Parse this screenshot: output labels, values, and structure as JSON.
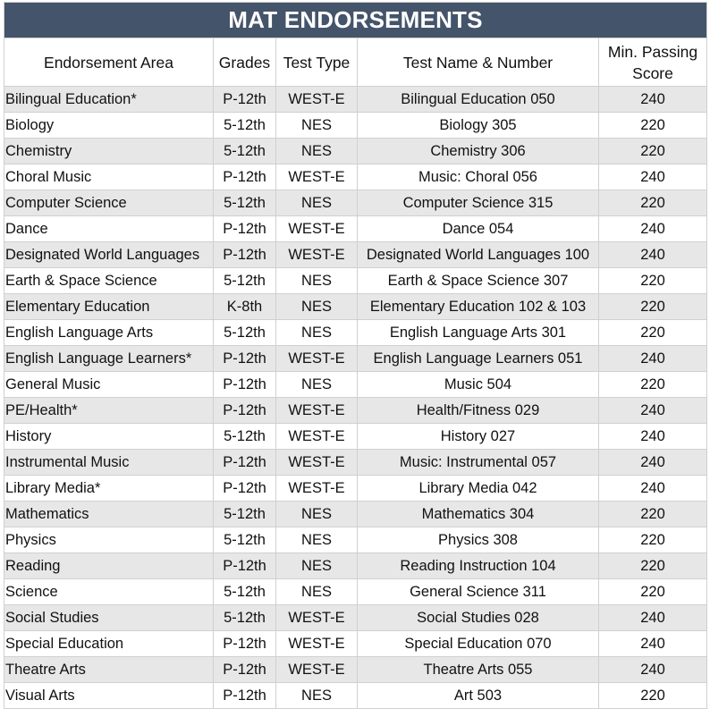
{
  "title": "MAT ENDORSEMENTS",
  "headers": {
    "area": "Endorsement Area",
    "grades": "Grades",
    "test_type": "Test Type",
    "test_name": "Test Name & Number",
    "min_score_line1": "Min. Passing",
    "min_score_line2": "Score"
  },
  "colors": {
    "title_bg": "#44546a",
    "title_text": "#ffffff",
    "row_shade": "#e7e7e7"
  },
  "rows": [
    {
      "area": "Bilingual Education*",
      "grades": "P-12th",
      "type": "WEST-E",
      "test": "Bilingual Education 050",
      "score": "240"
    },
    {
      "area": "Biology",
      "grades": "5-12th",
      "type": "NES",
      "test": "Biology 305",
      "score": "220"
    },
    {
      "area": "Chemistry",
      "grades": "5-12th",
      "type": "NES",
      "test": "Chemistry 306",
      "score": "220"
    },
    {
      "area": "Choral Music",
      "grades": "P-12th",
      "type": "WEST-E",
      "test": "Music: Choral 056",
      "score": "240"
    },
    {
      "area": "Computer Science",
      "grades": "5-12th",
      "type": "NES",
      "test": "Computer Science 315",
      "score": "220"
    },
    {
      "area": "Dance",
      "grades": "P-12th",
      "type": "WEST-E",
      "test": "Dance 054",
      "score": "240"
    },
    {
      "area": "Designated World Languages",
      "grades": "P-12th",
      "type": "WEST-E",
      "test": "Designated World Languages 100",
      "score": "240"
    },
    {
      "area": "Earth & Space Science",
      "grades": "5-12th",
      "type": "NES",
      "test": "Earth & Space Science 307",
      "score": "220"
    },
    {
      "area": "Elementary Education",
      "grades": "K-8th",
      "type": "NES",
      "test": "Elementary Education 102 & 103",
      "score": "220"
    },
    {
      "area": "English Language Arts",
      "grades": "5-12th",
      "type": "NES",
      "test": "English Language Arts 301",
      "score": "220"
    },
    {
      "area": "English Language Learners*",
      "grades": "P-12th",
      "type": "WEST-E",
      "test": "English Language Learners 051",
      "score": "240"
    },
    {
      "area": "General Music",
      "grades": "P-12th",
      "type": "NES",
      "test": "Music 504",
      "score": "220"
    },
    {
      "area": "PE/Health*",
      "grades": "P-12th",
      "type": "WEST-E",
      "test": "Health/Fitness 029",
      "score": "240"
    },
    {
      "area": "History",
      "grades": "5-12th",
      "type": "WEST-E",
      "test": "History 027",
      "score": "240"
    },
    {
      "area": "Instrumental Music",
      "grades": "P-12th",
      "type": "WEST-E",
      "test": "Music: Instrumental 057",
      "score": "240"
    },
    {
      "area": "Library Media*",
      "grades": "P-12th",
      "type": "WEST-E",
      "test": "Library Media 042",
      "score": "240"
    },
    {
      "area": "Mathematics",
      "grades": "5-12th",
      "type": "NES",
      "test": "Mathematics 304",
      "score": "220"
    },
    {
      "area": "Physics",
      "grades": "5-12th",
      "type": "NES",
      "test": "Physics 308",
      "score": "220"
    },
    {
      "area": "Reading",
      "grades": "P-12th",
      "type": "NES",
      "test": "Reading Instruction 104",
      "score": "220"
    },
    {
      "area": "Science",
      "grades": "5-12th",
      "type": "NES",
      "test": "General Science 311",
      "score": "220"
    },
    {
      "area": "Social Studies",
      "grades": "5-12th",
      "type": "WEST-E",
      "test": "Social Studies 028",
      "score": "240"
    },
    {
      "area": "Special Education",
      "grades": "P-12th",
      "type": "WEST-E",
      "test": "Special Education 070",
      "score": "240"
    },
    {
      "area": "Theatre Arts",
      "grades": "P-12th",
      "type": "WEST-E",
      "test": "Theatre Arts 055",
      "score": "240"
    },
    {
      "area": "Visual Arts",
      "grades": "P-12th",
      "type": "NES",
      "test": "Art 503",
      "score": "220"
    }
  ]
}
